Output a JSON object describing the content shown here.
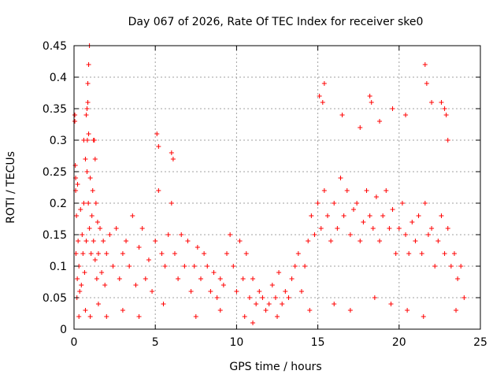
{
  "chart_data": {
    "type": "scatter",
    "title": "Day 067 of 2026, Rate Of TEC Index for receiver ske0",
    "xlabel": "GPS time / hours",
    "ylabel": "ROTI / TECUs",
    "xlim": [
      0,
      25
    ],
    "ylim": [
      0,
      0.45
    ],
    "x_ticks": [
      "0",
      "5",
      "10",
      "15",
      "20",
      "25"
    ],
    "y_ticks": [
      "0",
      "0.05",
      "0.1",
      "0.15",
      "0.2",
      "0.25",
      "0.3",
      "0.35",
      "0.4",
      "0.45"
    ],
    "grid": true,
    "marker": "+",
    "color": "#ff0000",
    "series": [
      {
        "x": [
          0.05,
          0.08,
          0.1,
          0.12,
          0.15,
          0.18,
          0.2,
          0.22,
          0.25,
          0.3,
          0.35,
          0.4,
          0.45,
          0.5,
          0.55,
          0.6,
          0.65,
          0.7,
          0.75,
          0.8,
          0.82,
          0.85,
          0.88,
          0.9,
          0.95,
          1.0,
          1.05,
          1.1,
          1.15,
          1.2,
          1.25,
          1.3,
          1.35,
          1.4,
          1.45,
          1.5,
          1.6,
          1.7,
          1.8,
          1.9,
          2.0,
          2.2,
          2.4,
          2.6,
          2.8,
          3.0,
          3.2,
          3.4,
          3.6,
          3.8,
          4.0,
          4.2,
          4.4,
          4.6,
          4.8,
          5.0,
          5.2,
          5.4,
          5.6,
          5.8,
          6.0,
          6.2,
          6.4,
          6.6,
          6.8,
          7.0,
          7.2,
          7.4,
          7.6,
          7.8,
          8.0,
          8.2,
          8.4,
          8.6,
          8.8,
          9.0,
          9.2,
          9.4,
          9.6,
          9.8,
          10.0,
          10.2,
          10.4,
          10.6,
          10.8,
          11.0,
          11.2,
          11.4,
          11.6,
          11.8,
          12.0,
          12.2,
          12.4,
          12.6,
          12.8,
          13.0,
          13.2,
          13.4,
          13.6,
          13.8,
          14.0,
          14.2,
          14.4,
          14.6,
          14.8,
          15.0,
          15.2,
          15.4,
          15.6,
          15.8,
          16.0,
          16.2,
          16.4,
          16.6,
          16.8,
          17.0,
          17.2,
          17.4,
          17.6,
          17.8,
          18.0,
          18.2,
          18.4,
          18.6,
          18.8,
          19.0,
          19.2,
          19.4,
          19.6,
          19.8,
          20.0,
          20.2,
          20.4,
          20.6,
          20.8,
          21.0,
          21.2,
          21.4,
          21.6,
          21.8,
          22.0,
          22.2,
          22.4,
          22.6,
          22.8,
          23.0,
          23.2,
          23.4,
          23.6,
          23.8,
          24.0,
          0.05,
          0.1,
          0.6,
          0.75,
          0.8,
          0.85,
          0.9,
          0.95,
          1.2,
          1.3,
          5.1,
          5.2,
          6.0,
          6.1,
          15.1,
          15.3,
          15.4,
          16.5,
          17.6,
          18.2,
          18.3,
          18.8,
          19.6,
          20.4,
          21.6,
          21.7,
          22.0,
          22.6,
          22.8,
          22.9,
          23.0,
          0.3,
          0.7,
          1.0,
          1.5,
          2.0,
          3.0,
          4.0,
          5.5,
          7.5,
          9.0,
          10.5,
          11.0,
          12.5,
          14.5,
          16.0,
          17.0,
          18.5,
          19.5,
          20.5,
          21.5,
          23.5
        ],
        "y": [
          0.34,
          0.26,
          0.22,
          0.12,
          0.18,
          0.05,
          0.08,
          0.23,
          0.14,
          0.1,
          0.06,
          0.19,
          0.07,
          0.15,
          0.12,
          0.2,
          0.09,
          0.27,
          0.14,
          0.25,
          0.3,
          0.36,
          0.2,
          0.31,
          0.16,
          0.24,
          0.12,
          0.18,
          0.22,
          0.14,
          0.3,
          0.11,
          0.2,
          0.08,
          0.17,
          0.12,
          0.16,
          0.09,
          0.14,
          0.07,
          0.12,
          0.15,
          0.1,
          0.16,
          0.08,
          0.12,
          0.14,
          0.1,
          0.18,
          0.07,
          0.13,
          0.16,
          0.08,
          0.11,
          0.06,
          0.14,
          0.22,
          0.12,
          0.1,
          0.15,
          0.2,
          0.12,
          0.08,
          0.15,
          0.1,
          0.14,
          0.06,
          0.1,
          0.13,
          0.08,
          0.12,
          0.1,
          0.06,
          0.09,
          0.05,
          0.08,
          0.07,
          0.12,
          0.15,
          0.1,
          0.06,
          0.14,
          0.08,
          0.12,
          0.05,
          0.08,
          0.04,
          0.06,
          0.05,
          0.03,
          0.04,
          0.07,
          0.05,
          0.09,
          0.04,
          0.06,
          0.05,
          0.08,
          0.1,
          0.12,
          0.06,
          0.1,
          0.14,
          0.18,
          0.15,
          0.2,
          0.16,
          0.22,
          0.18,
          0.14,
          0.2,
          0.16,
          0.24,
          0.18,
          0.22,
          0.15,
          0.19,
          0.2,
          0.14,
          0.17,
          0.22,
          0.18,
          0.16,
          0.21,
          0.14,
          0.18,
          0.22,
          0.16,
          0.19,
          0.12,
          0.16,
          0.2,
          0.15,
          0.12,
          0.17,
          0.14,
          0.18,
          0.12,
          0.2,
          0.15,
          0.16,
          0.1,
          0.14,
          0.18,
          0.12,
          0.16,
          0.1,
          0.12,
          0.08,
          0.1,
          0.05,
          0.33,
          0.24,
          0.3,
          0.34,
          0.35,
          0.39,
          0.42,
          0.45,
          0.3,
          0.27,
          0.31,
          0.29,
          0.28,
          0.27,
          0.37,
          0.36,
          0.39,
          0.34,
          0.32,
          0.37,
          0.36,
          0.33,
          0.35,
          0.34,
          0.42,
          0.39,
          0.36,
          0.36,
          0.35,
          0.34,
          0.3,
          0.02,
          0.03,
          0.02,
          0.04,
          0.02,
          0.03,
          0.02,
          0.04,
          0.02,
          0.03,
          0.02,
          0.01,
          0.02,
          0.03,
          0.04,
          0.03,
          0.05,
          0.04,
          0.03,
          0.02,
          0.03
        ]
      }
    ]
  }
}
